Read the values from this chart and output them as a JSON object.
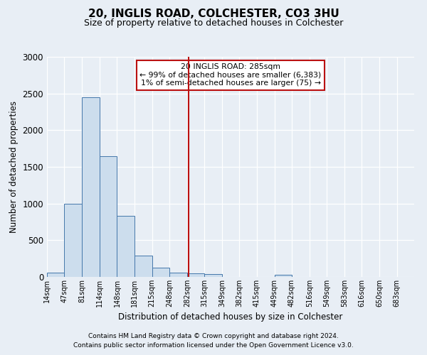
{
  "title": "20, INGLIS ROAD, COLCHESTER, CO3 3HU",
  "subtitle": "Size of property relative to detached houses in Colchester",
  "xlabel": "Distribution of detached houses by size in Colchester",
  "ylabel": "Number of detached properties",
  "footnote1": "Contains HM Land Registry data © Crown copyright and database right 2024.",
  "footnote2": "Contains public sector information licensed under the Open Government Licence v3.0.",
  "annotation_title": "20 INGLIS ROAD: 285sqm",
  "annotation_line1": "← 99% of detached houses are smaller (6,383)",
  "annotation_line2": "1% of semi-detached houses are larger (75) →",
  "property_size": 285,
  "bar_edges": [
    14,
    47,
    81,
    114,
    148,
    181,
    215,
    248,
    282,
    315,
    349,
    382,
    415,
    449,
    482,
    516,
    549,
    583,
    616,
    650,
    683
  ],
  "bar_heights": [
    60,
    1000,
    2450,
    1650,
    830,
    290,
    130,
    55,
    45,
    40,
    0,
    0,
    0,
    30,
    0,
    0,
    0,
    0,
    0,
    0
  ],
  "bar_color": "#ccdded",
  "bar_edge_color": "#4477aa",
  "vline_color": "#bb1111",
  "vline_x": 285,
  "annotation_box_color": "#ffffff",
  "annotation_box_edgecolor": "#bb1111",
  "ylim": [
    0,
    3000
  ],
  "background_color": "#e8eef5",
  "grid_color": "#ffffff",
  "tick_labels": [
    "14sqm",
    "47sqm",
    "81sqm",
    "114sqm",
    "148sqm",
    "181sqm",
    "215sqm",
    "248sqm",
    "282sqm",
    "315sqm",
    "349sqm",
    "382sqm",
    "415sqm",
    "449sqm",
    "482sqm",
    "516sqm",
    "549sqm",
    "583sqm",
    "616sqm",
    "650sqm",
    "683sqm"
  ]
}
